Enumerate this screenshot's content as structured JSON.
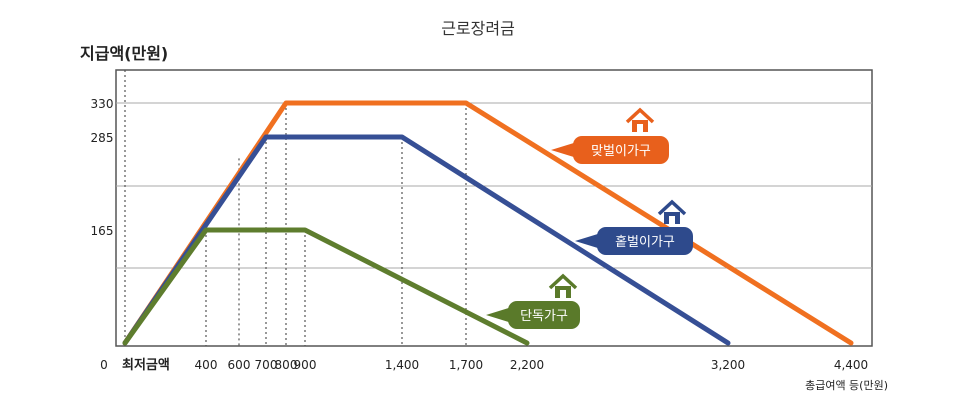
{
  "chart_data": {
    "type": "line",
    "title": "근로장려금",
    "ylabel": "지급액(만원)",
    "xlabel": "총급여액 등(만원)",
    "origin_label": "0",
    "min_wage_label": "최저금액",
    "xlim": [
      0,
      4400
    ],
    "ylim": [
      0,
      400
    ],
    "x_ticks": [
      {
        "value": 400,
        "label": "400"
      },
      {
        "value": 600,
        "label": "600"
      },
      {
        "value": 700,
        "label": "700"
      },
      {
        "value": 800,
        "label": "800"
      },
      {
        "value": 900,
        "label": "900"
      },
      {
        "value": 1400,
        "label": "1,400"
      },
      {
        "value": 1700,
        "label": "1,700"
      },
      {
        "value": 2200,
        "label": "2,200"
      },
      {
        "value": 3200,
        "label": "3,200"
      },
      {
        "value": 4400,
        "label": "4,400"
      }
    ],
    "y_ticks": [
      {
        "value": 165,
        "label": "165"
      },
      {
        "value": 285,
        "label": "285"
      },
      {
        "value": 330,
        "label": "330"
      }
    ],
    "grid_y": [
      100,
      200,
      330
    ],
    "series": [
      {
        "name": "맞벌이가구",
        "color": "#f07020",
        "label_bg": "#e8601c",
        "points": [
          [
            0,
            0
          ],
          [
            800,
            330
          ],
          [
            1700,
            330
          ],
          [
            4400,
            0
          ]
        ]
      },
      {
        "name": "홑벌이가구",
        "color": "#364f95",
        "label_bg": "#2e4a8c",
        "points": [
          [
            0,
            0
          ],
          [
            700,
            285
          ],
          [
            1400,
            285
          ],
          [
            3200,
            0
          ]
        ]
      },
      {
        "name": "단독가구",
        "color": "#5e7d2e",
        "label_bg": "#5a7a2a",
        "points": [
          [
            0,
            0
          ],
          [
            400,
            165
          ],
          [
            900,
            165
          ],
          [
            2200,
            0
          ]
        ]
      }
    ],
    "guides": [
      {
        "x": 0,
        "y": 400
      },
      {
        "x": 400,
        "y": 165
      },
      {
        "x": 600,
        "y": 248
      },
      {
        "x": 700,
        "y": 285
      },
      {
        "x": 800,
        "y": 330
      },
      {
        "x": 900,
        "y": 165
      },
      {
        "x": 1400,
        "y": 285
      },
      {
        "x": 1700,
        "y": 330
      }
    ],
    "grid": true,
    "legend": "inline-labels"
  }
}
